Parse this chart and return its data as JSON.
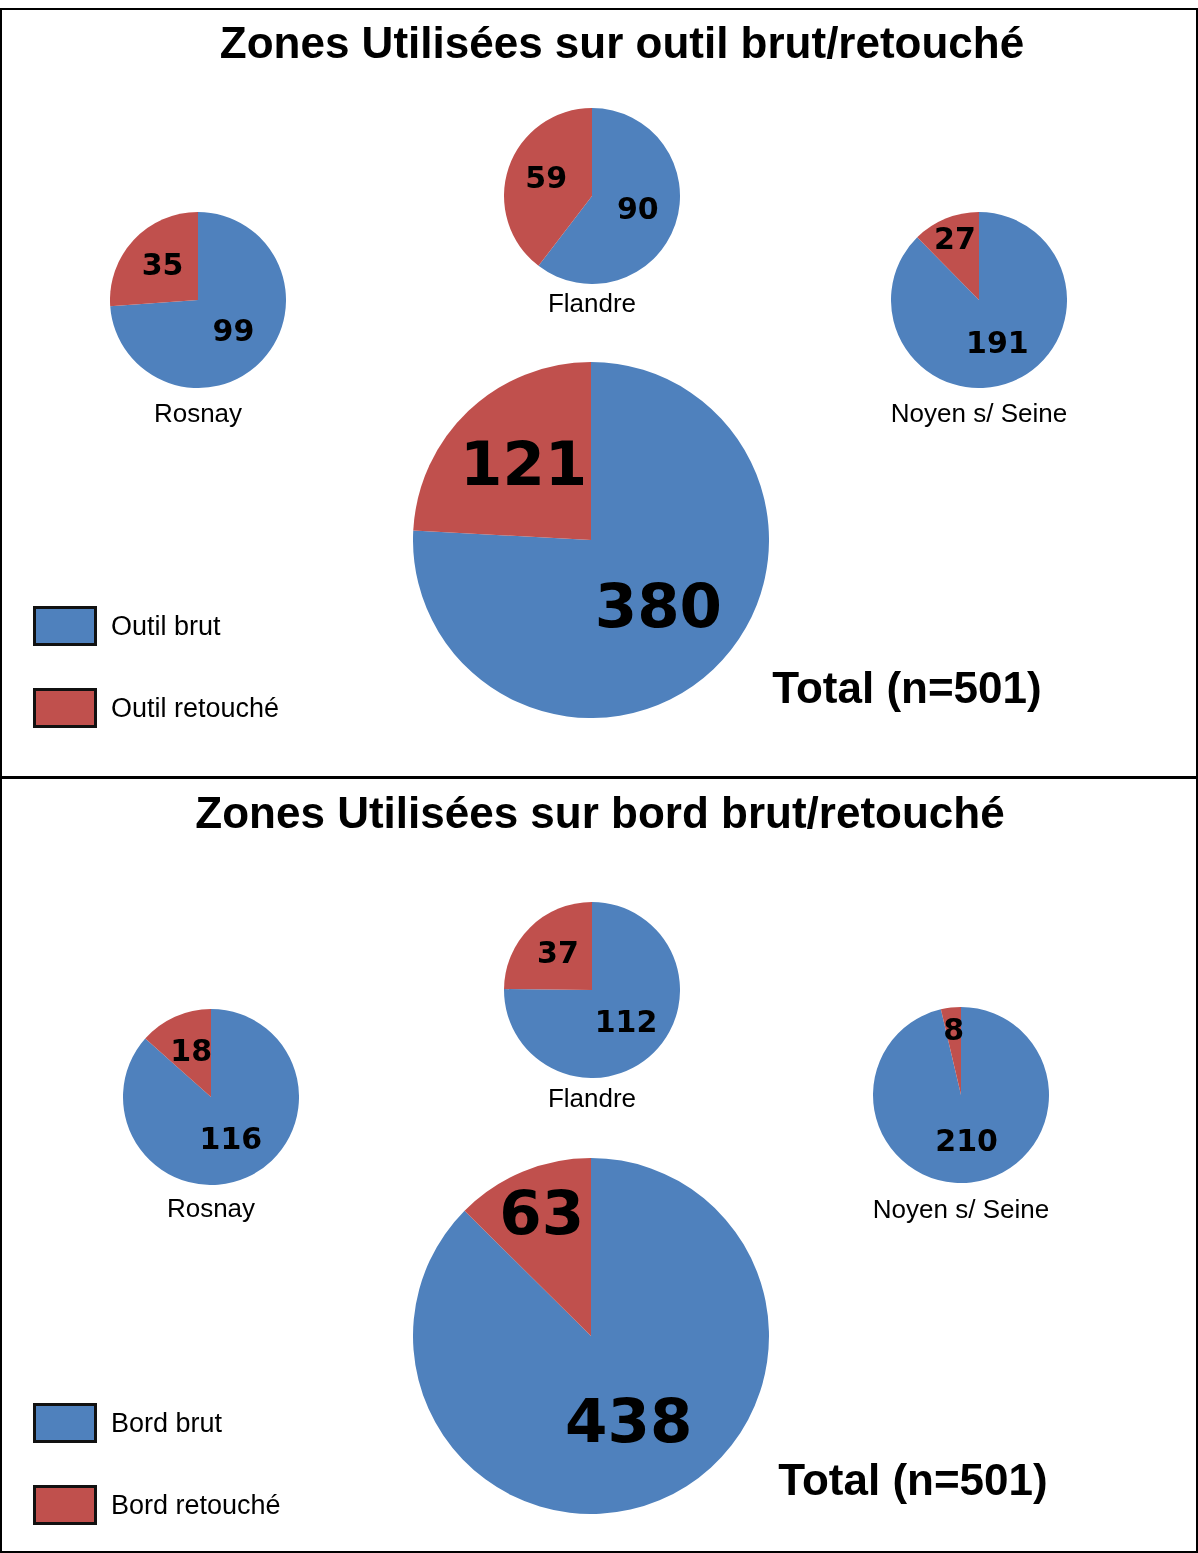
{
  "chart_data": [
    {
      "type": "pie",
      "title": "Rosnay",
      "categories": [
        null,
        null
      ],
      "values": [
        99,
        35
      ],
      "colors": [
        "#4f81bd",
        "#c0504d"
      ],
      "data_labels": true
    },
    {
      "type": "pie",
      "title": "Flandre",
      "categories": [
        null,
        null
      ],
      "values": [
        90,
        59
      ],
      "colors": [
        "#4f81bd",
        "#c0504d"
      ],
      "data_labels": true
    },
    {
      "type": "pie",
      "title": "Noyen s/ Seine",
      "categories": [
        null,
        null
      ],
      "values": [
        191,
        27
      ],
      "colors": [
        "#4f81bd",
        "#c0504d"
      ],
      "data_labels": true
    },
    {
      "type": "pie",
      "title": "Zones Utilisées sur outil brut/retouché",
      "subtitle": "Total (n=501)",
      "categories": [
        "Outil brut",
        "Outil retouché"
      ],
      "values": [
        380,
        121
      ],
      "colors": [
        "#4f81bd",
        "#c0504d"
      ],
      "data_labels": true,
      "legend": "bottom left"
    },
    {
      "type": "pie",
      "title": "Rosnay",
      "categories": [
        null,
        null
      ],
      "values": [
        116,
        18
      ],
      "colors": [
        "#4f81bd",
        "#c0504d"
      ],
      "data_labels": true
    },
    {
      "type": "pie",
      "title": "Flandre",
      "categories": [
        null,
        null
      ],
      "values": [
        112,
        37
      ],
      "colors": [
        "#4f81bd",
        "#c0504d"
      ],
      "data_labels": true
    },
    {
      "type": "pie",
      "title": "Noyen s/ Seine",
      "categories": [
        null,
        null
      ],
      "values": [
        210,
        8
      ],
      "colors": [
        "#4f81bd",
        "#c0504d"
      ],
      "data_labels": true
    },
    {
      "type": "pie",
      "title": "Zones Utilisées sur bord brut/retouché",
      "subtitle": "Total (n=501)",
      "categories": [
        "Bord brut",
        "Bord retouché"
      ],
      "values": [
        438,
        63
      ],
      "colors": [
        "#4f81bd",
        "#c0504d"
      ],
      "data_labels": true,
      "legend": "bottom left"
    }
  ]
}
